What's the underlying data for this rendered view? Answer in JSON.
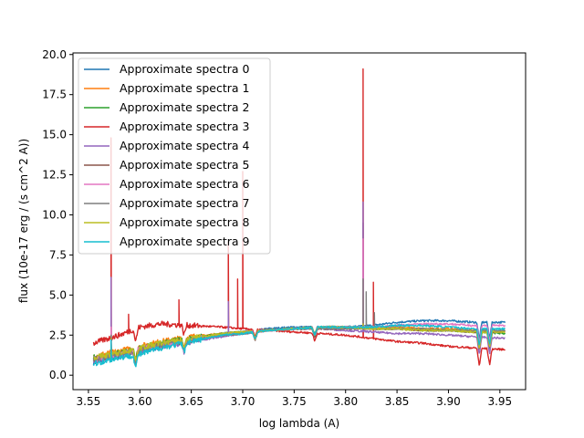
{
  "chart_data": {
    "type": "line",
    "xlabel": "log lambda (A)",
    "ylabel": "flux (10e-17 erg / (s cm^2 A))",
    "xlim": [
      3.535,
      3.975
    ],
    "ylim": [
      -0.9,
      20.1
    ],
    "xticks": [
      3.55,
      3.6,
      3.65,
      3.7,
      3.75,
      3.8,
      3.85,
      3.9,
      3.95
    ],
    "xtick_labels": [
      "3.55",
      "3.60",
      "3.65",
      "3.70",
      "3.75",
      "3.80",
      "3.85",
      "3.90",
      "3.95"
    ],
    "yticks": [
      0.0,
      2.5,
      5.0,
      7.5,
      10.0,
      12.5,
      15.0,
      17.5,
      20.0
    ],
    "ytick_labels": [
      "0.0",
      "2.5",
      "5.0",
      "7.5",
      "10.0",
      "12.5",
      "15.0",
      "17.5",
      "20.0"
    ],
    "grid": false,
    "legend_position": "upper-left",
    "x_range": [
      3.555,
      3.955
    ],
    "series": [
      {
        "name": "Approximate spectra 0",
        "color": "#1f77b4",
        "x": [
          3.555,
          3.58,
          3.6,
          3.62,
          3.65,
          3.68,
          3.7,
          3.725,
          3.75,
          3.775,
          3.8,
          3.825,
          3.85,
          3.875,
          3.9,
          3.925,
          3.955
        ],
        "y": [
          0.8,
          1.2,
          1.5,
          1.8,
          2.2,
          2.6,
          2.7,
          2.9,
          3.0,
          3.0,
          3.0,
          3.1,
          3.3,
          3.4,
          3.4,
          3.3,
          3.3
        ],
        "peaks": [
          [
            3.572,
            2.6
          ],
          [
            3.817,
            9.5
          ]
        ]
      },
      {
        "name": "Approximate spectra 1",
        "color": "#ff7f0e",
        "x": [
          3.555,
          3.58,
          3.6,
          3.62,
          3.65,
          3.68,
          3.7,
          3.725,
          3.75,
          3.775,
          3.8,
          3.825,
          3.85,
          3.875,
          3.9,
          3.925,
          3.955
        ],
        "y": [
          1.2,
          1.5,
          1.8,
          2.1,
          2.4,
          2.6,
          2.7,
          2.8,
          2.9,
          3.0,
          3.0,
          3.0,
          3.0,
          2.9,
          2.9,
          2.8,
          2.7
        ],
        "peaks": [
          [
            3.572,
            2.4
          ],
          [
            3.817,
            4.0
          ]
        ]
      },
      {
        "name": "Approximate spectra 2",
        "color": "#2ca02c",
        "x": [
          3.555,
          3.58,
          3.6,
          3.62,
          3.65,
          3.68,
          3.7,
          3.725,
          3.75,
          3.775,
          3.8,
          3.825,
          3.85,
          3.875,
          3.9,
          3.925,
          3.955
        ],
        "y": [
          1.1,
          1.4,
          1.7,
          2.0,
          2.3,
          2.6,
          2.7,
          2.8,
          2.9,
          3.0,
          3.0,
          2.9,
          2.9,
          2.8,
          2.8,
          2.7,
          2.6
        ],
        "peaks": [
          [
            3.572,
            2.2
          ],
          [
            3.817,
            3.5
          ]
        ]
      },
      {
        "name": "Approximate spectra 3",
        "color": "#d62728",
        "x": [
          3.555,
          3.58,
          3.6,
          3.62,
          3.65,
          3.68,
          3.7,
          3.725,
          3.75,
          3.775,
          3.8,
          3.825,
          3.85,
          3.875,
          3.9,
          3.925,
          3.955
        ],
        "y": [
          2.0,
          2.5,
          3.0,
          3.2,
          3.1,
          3.0,
          2.9,
          2.8,
          2.7,
          2.6,
          2.5,
          2.3,
          2.1,
          2.0,
          1.8,
          1.7,
          1.6
        ],
        "peaks": [
          [
            3.572,
            14.8
          ],
          [
            3.589,
            3.8
          ],
          [
            3.638,
            4.7
          ],
          [
            3.686,
            8.3
          ],
          [
            3.695,
            6.0
          ],
          [
            3.7,
            12.7
          ],
          [
            3.817,
            19.1
          ],
          [
            3.827,
            5.8
          ]
        ]
      },
      {
        "name": "Approximate spectra 4",
        "color": "#9467bd",
        "x": [
          3.555,
          3.58,
          3.6,
          3.62,
          3.65,
          3.68,
          3.7,
          3.725,
          3.75,
          3.775,
          3.8,
          3.825,
          3.85,
          3.875,
          3.9,
          3.925,
          3.955
        ],
        "y": [
          0.9,
          1.2,
          1.5,
          1.8,
          2.1,
          2.4,
          2.6,
          2.8,
          2.9,
          2.9,
          2.8,
          2.7,
          2.6,
          2.6,
          2.5,
          2.4,
          2.3
        ],
        "peaks": [
          [
            3.572,
            6.1
          ],
          [
            3.686,
            4.6
          ],
          [
            3.817,
            10.8
          ]
        ]
      },
      {
        "name": "Approximate spectra 5",
        "color": "#8c564b",
        "x": [
          3.555,
          3.58,
          3.6,
          3.62,
          3.65,
          3.68,
          3.7,
          3.725,
          3.75,
          3.775,
          3.8,
          3.825,
          3.85,
          3.875,
          3.9,
          3.925,
          3.955
        ],
        "y": [
          1.0,
          1.3,
          1.6,
          1.9,
          2.2,
          2.5,
          2.6,
          2.8,
          2.9,
          2.9,
          2.9,
          2.9,
          2.9,
          2.8,
          2.8,
          2.7,
          2.7
        ],
        "peaks": [
          [
            3.572,
            2.8
          ],
          [
            3.817,
            5.0
          ]
        ]
      },
      {
        "name": "Approximate spectra 6",
        "color": "#e377c2",
        "x": [
          3.555,
          3.58,
          3.6,
          3.62,
          3.65,
          3.68,
          3.7,
          3.725,
          3.75,
          3.775,
          3.8,
          3.825,
          3.85,
          3.875,
          3.9,
          3.925,
          3.955
        ],
        "y": [
          1.0,
          1.3,
          1.6,
          1.9,
          2.2,
          2.5,
          2.7,
          2.8,
          2.9,
          3.0,
          3.0,
          3.0,
          3.1,
          3.2,
          3.2,
          3.1,
          3.1
        ],
        "peaks": [
          [
            3.572,
            3.0
          ],
          [
            3.817,
            8.5
          ]
        ]
      },
      {
        "name": "Approximate spectra 7",
        "color": "#7f7f7f",
        "x": [
          3.555,
          3.58,
          3.6,
          3.62,
          3.65,
          3.68,
          3.7,
          3.725,
          3.75,
          3.775,
          3.8,
          3.825,
          3.85,
          3.875,
          3.9,
          3.925,
          3.955
        ],
        "y": [
          1.0,
          1.3,
          1.6,
          1.9,
          2.2,
          2.5,
          2.6,
          2.8,
          2.9,
          2.9,
          2.9,
          2.9,
          2.9,
          2.9,
          2.8,
          2.8,
          2.8
        ],
        "peaks": [
          [
            3.572,
            2.5
          ],
          [
            3.817,
            6.0
          ],
          [
            3.82,
            5.2
          ],
          [
            3.828,
            3.9
          ]
        ]
      },
      {
        "name": "Approximate spectra 8",
        "color": "#bcbd22",
        "x": [
          3.555,
          3.58,
          3.6,
          3.62,
          3.65,
          3.68,
          3.7,
          3.725,
          3.75,
          3.775,
          3.8,
          3.825,
          3.85,
          3.875,
          3.9,
          3.925,
          3.955
        ],
        "y": [
          1.1,
          1.4,
          1.7,
          2.0,
          2.3,
          2.6,
          2.7,
          2.8,
          2.9,
          3.0,
          3.0,
          2.9,
          2.9,
          2.8,
          2.8,
          2.7,
          2.7
        ],
        "peaks": [
          [
            3.572,
            2.3
          ],
          [
            3.817,
            3.2
          ]
        ]
      },
      {
        "name": "Approximate spectra 9",
        "color": "#17becf",
        "x": [
          3.555,
          3.58,
          3.6,
          3.62,
          3.65,
          3.68,
          3.7,
          3.725,
          3.75,
          3.775,
          3.8,
          3.825,
          3.85,
          3.875,
          3.9,
          3.925,
          3.955
        ],
        "y": [
          0.7,
          1.1,
          1.3,
          1.7,
          2.1,
          2.5,
          2.6,
          2.8,
          2.9,
          3.0,
          3.0,
          3.0,
          3.1,
          3.1,
          3.0,
          2.9,
          2.9
        ],
        "peaks": [
          [
            3.572,
            2.2
          ],
          [
            3.817,
            3.0
          ]
        ]
      }
    ]
  }
}
